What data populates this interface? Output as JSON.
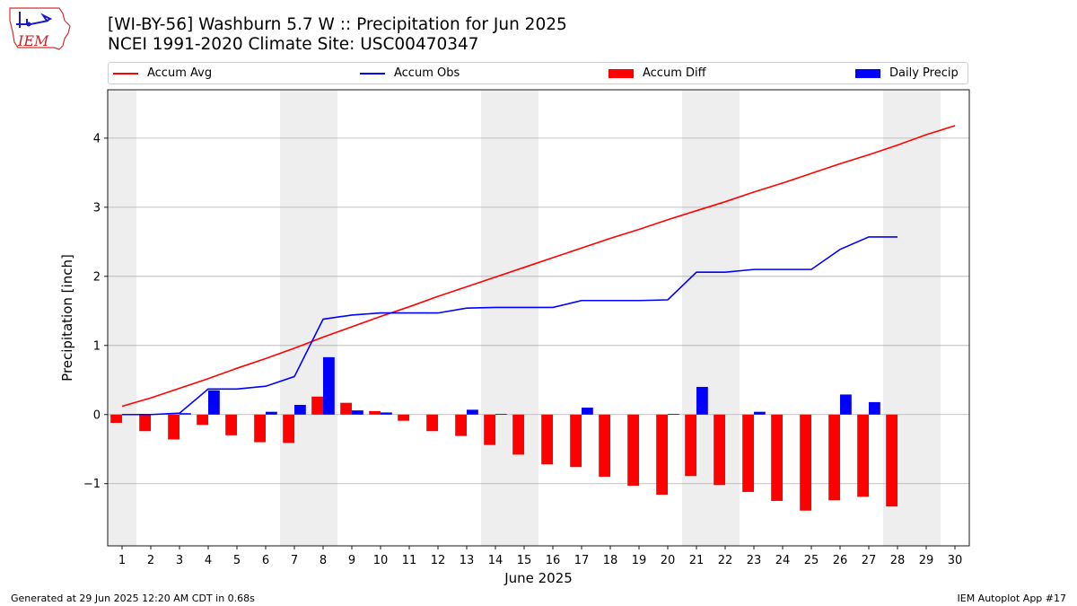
{
  "logo": {
    "text": "IEM"
  },
  "header": {
    "title_line1": "[WI-BY-56] Washburn 5.7 W :: Precipitation for Jun 2025",
    "title_line2": "NCEI 1991-2020 Climate Site: USC00470347"
  },
  "legend": [
    {
      "label": "Accum Avg",
      "kind": "line",
      "color": "#ff0000"
    },
    {
      "label": "Accum Obs",
      "kind": "line",
      "color": "#0000ff"
    },
    {
      "label": "Accum Diff",
      "kind": "box",
      "color": "#ff0000"
    },
    {
      "label": "Daily Precip",
      "kind": "box",
      "color": "#0000ff"
    }
  ],
  "footer": {
    "left": "Generated at 29 Jun 2025 12:20 AM CDT in 0.68s",
    "right": "IEM Autoplot App #17"
  },
  "chart_data": {
    "type": "bar",
    "xlabel": "June 2025",
    "ylabel": "Precipitation [inch]",
    "xlim": [
      0.5,
      30.5
    ],
    "ylim": [
      -1.9,
      4.7
    ],
    "yticks": [
      -1,
      0,
      1,
      2,
      3,
      4
    ],
    "ytick_labels": [
      "−1",
      "0",
      "1",
      "2",
      "3",
      "4"
    ],
    "grid": "horizontal",
    "weekend_shading": [
      [
        0.5,
        1.5
      ],
      [
        6.5,
        8.5
      ],
      [
        13.5,
        15.5
      ],
      [
        20.5,
        22.5
      ],
      [
        27.5,
        29.5
      ]
    ],
    "x": [
      1,
      2,
      3,
      4,
      5,
      6,
      7,
      8,
      9,
      10,
      11,
      12,
      13,
      14,
      15,
      16,
      17,
      18,
      19,
      20,
      21,
      22,
      23,
      24,
      25,
      26,
      27,
      28,
      29,
      30
    ],
    "series": [
      {
        "name": "Accum Avg",
        "kind": "line",
        "color": "#ff0000",
        "values": [
          0.12,
          0.24,
          0.38,
          0.52,
          0.67,
          0.81,
          0.96,
          1.12,
          1.27,
          1.42,
          1.56,
          1.71,
          1.85,
          1.99,
          2.13,
          2.27,
          2.41,
          2.55,
          2.68,
          2.82,
          2.95,
          3.08,
          3.22,
          3.35,
          3.49,
          3.63,
          3.76,
          3.9,
          4.05,
          4.18
        ]
      },
      {
        "name": "Accum Obs",
        "kind": "line",
        "color": "#0000ff",
        "values": [
          0.0,
          0.0,
          0.02,
          0.37,
          0.37,
          0.41,
          0.55,
          1.38,
          1.44,
          1.47,
          1.47,
          1.47,
          1.54,
          1.55,
          1.55,
          1.55,
          1.65,
          1.65,
          1.65,
          1.66,
          2.06,
          2.06,
          2.1,
          2.1,
          2.1,
          2.39,
          2.57,
          2.57,
          null,
          null
        ]
      },
      {
        "name": "Accum Diff",
        "kind": "bar",
        "color": "#ff0000",
        "offset": "left",
        "values": [
          -0.12,
          -0.24,
          -0.36,
          -0.15,
          -0.3,
          -0.4,
          -0.41,
          0.26,
          0.17,
          0.05,
          -0.09,
          -0.24,
          -0.31,
          -0.44,
          -0.58,
          -0.72,
          -0.76,
          -0.9,
          -1.03,
          -1.16,
          -0.89,
          -1.02,
          -1.12,
          -1.25,
          -1.39,
          -1.24,
          -1.19,
          -1.33,
          null,
          null
        ]
      },
      {
        "name": "Daily Precip",
        "kind": "bar",
        "color": "#0000ff",
        "offset": "right",
        "values": [
          0.0,
          0.0,
          0.02,
          0.35,
          0.0,
          0.04,
          0.14,
          0.83,
          0.06,
          0.03,
          0.0,
          0.0,
          0.07,
          0.01,
          0.0,
          0.0,
          0.1,
          0.0,
          0.0,
          0.01,
          0.4,
          0.0,
          0.04,
          0.0,
          0.0,
          0.29,
          0.18,
          0.0,
          null,
          null
        ]
      }
    ]
  }
}
